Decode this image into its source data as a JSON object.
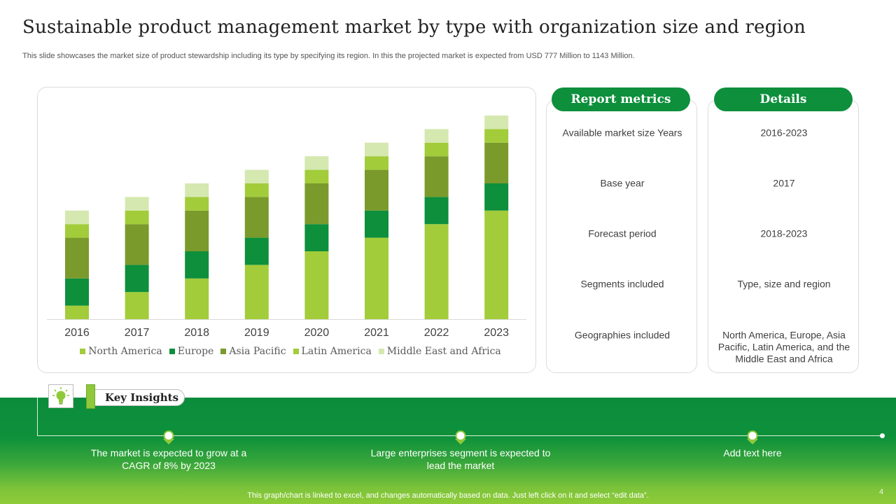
{
  "slide": {
    "title": "Sustainable product management market by type with organization size and region",
    "subtitle": "This slide showcases the market size of product stewardship including its type by specifying its region. In this the projected market is expected from USD 777 Million to 1143 Million.",
    "page_number": "4",
    "footer_note": "This graph/chart is linked to excel, and changes automatically based on data. Just left click on it and select “edit data”."
  },
  "chart_data": {
    "type": "bar",
    "stacked": true,
    "categories": [
      "2016",
      "2017",
      "2018",
      "2019",
      "2020",
      "2021",
      "2022",
      "2023"
    ],
    "series": [
      {
        "name": "North America",
        "color": "#a2cc3a",
        "values": [
          1,
          2,
          3,
          4,
          5,
          6,
          7,
          8
        ]
      },
      {
        "name": "Europe",
        "color": "#0d8f3c",
        "values": [
          2,
          2,
          2,
          2,
          2,
          2,
          2,
          2
        ]
      },
      {
        "name": "Asia Pacific",
        "color": "#7a9a2c",
        "values": [
          3,
          3,
          3,
          3,
          3,
          3,
          3,
          3
        ]
      },
      {
        "name": "Latin America",
        "color": "#a2cc3a",
        "values": [
          1,
          1,
          1,
          1,
          1,
          1,
          1,
          1
        ]
      },
      {
        "name": "Middle East and Africa",
        "color": "#d5e8b0",
        "values": [
          1,
          1,
          1,
          1,
          1,
          1,
          1,
          1
        ]
      }
    ],
    "ylim": [
      0,
      15
    ],
    "grid": false,
    "y_axis_visible": false,
    "legend_position": "bottom",
    "title": "",
    "xlabel": "",
    "ylabel": ""
  },
  "report_table": {
    "headers": {
      "metrics": "Report metrics",
      "details": "Details"
    },
    "rows": [
      {
        "metric": "Available  market size Years",
        "detail": "2016-2023"
      },
      {
        "metric": "Base year",
        "detail": "2017"
      },
      {
        "metric": "Forecast period",
        "detail": "2018-2023"
      },
      {
        "metric": "Segments included",
        "detail": "Type, size and region"
      },
      {
        "metric": "Geographies included",
        "detail": "North America, Europe, Asia Pacific, Latin America, and the Middle  East and Africa"
      }
    ]
  },
  "key_insights": {
    "label": "Key Insights",
    "icon": "lightbulb-icon",
    "items": [
      "The market is expected to grow at a CAGR of 8% by 2023",
      "Large enterprises segment is expected to lead the market",
      "Add text here"
    ]
  }
}
